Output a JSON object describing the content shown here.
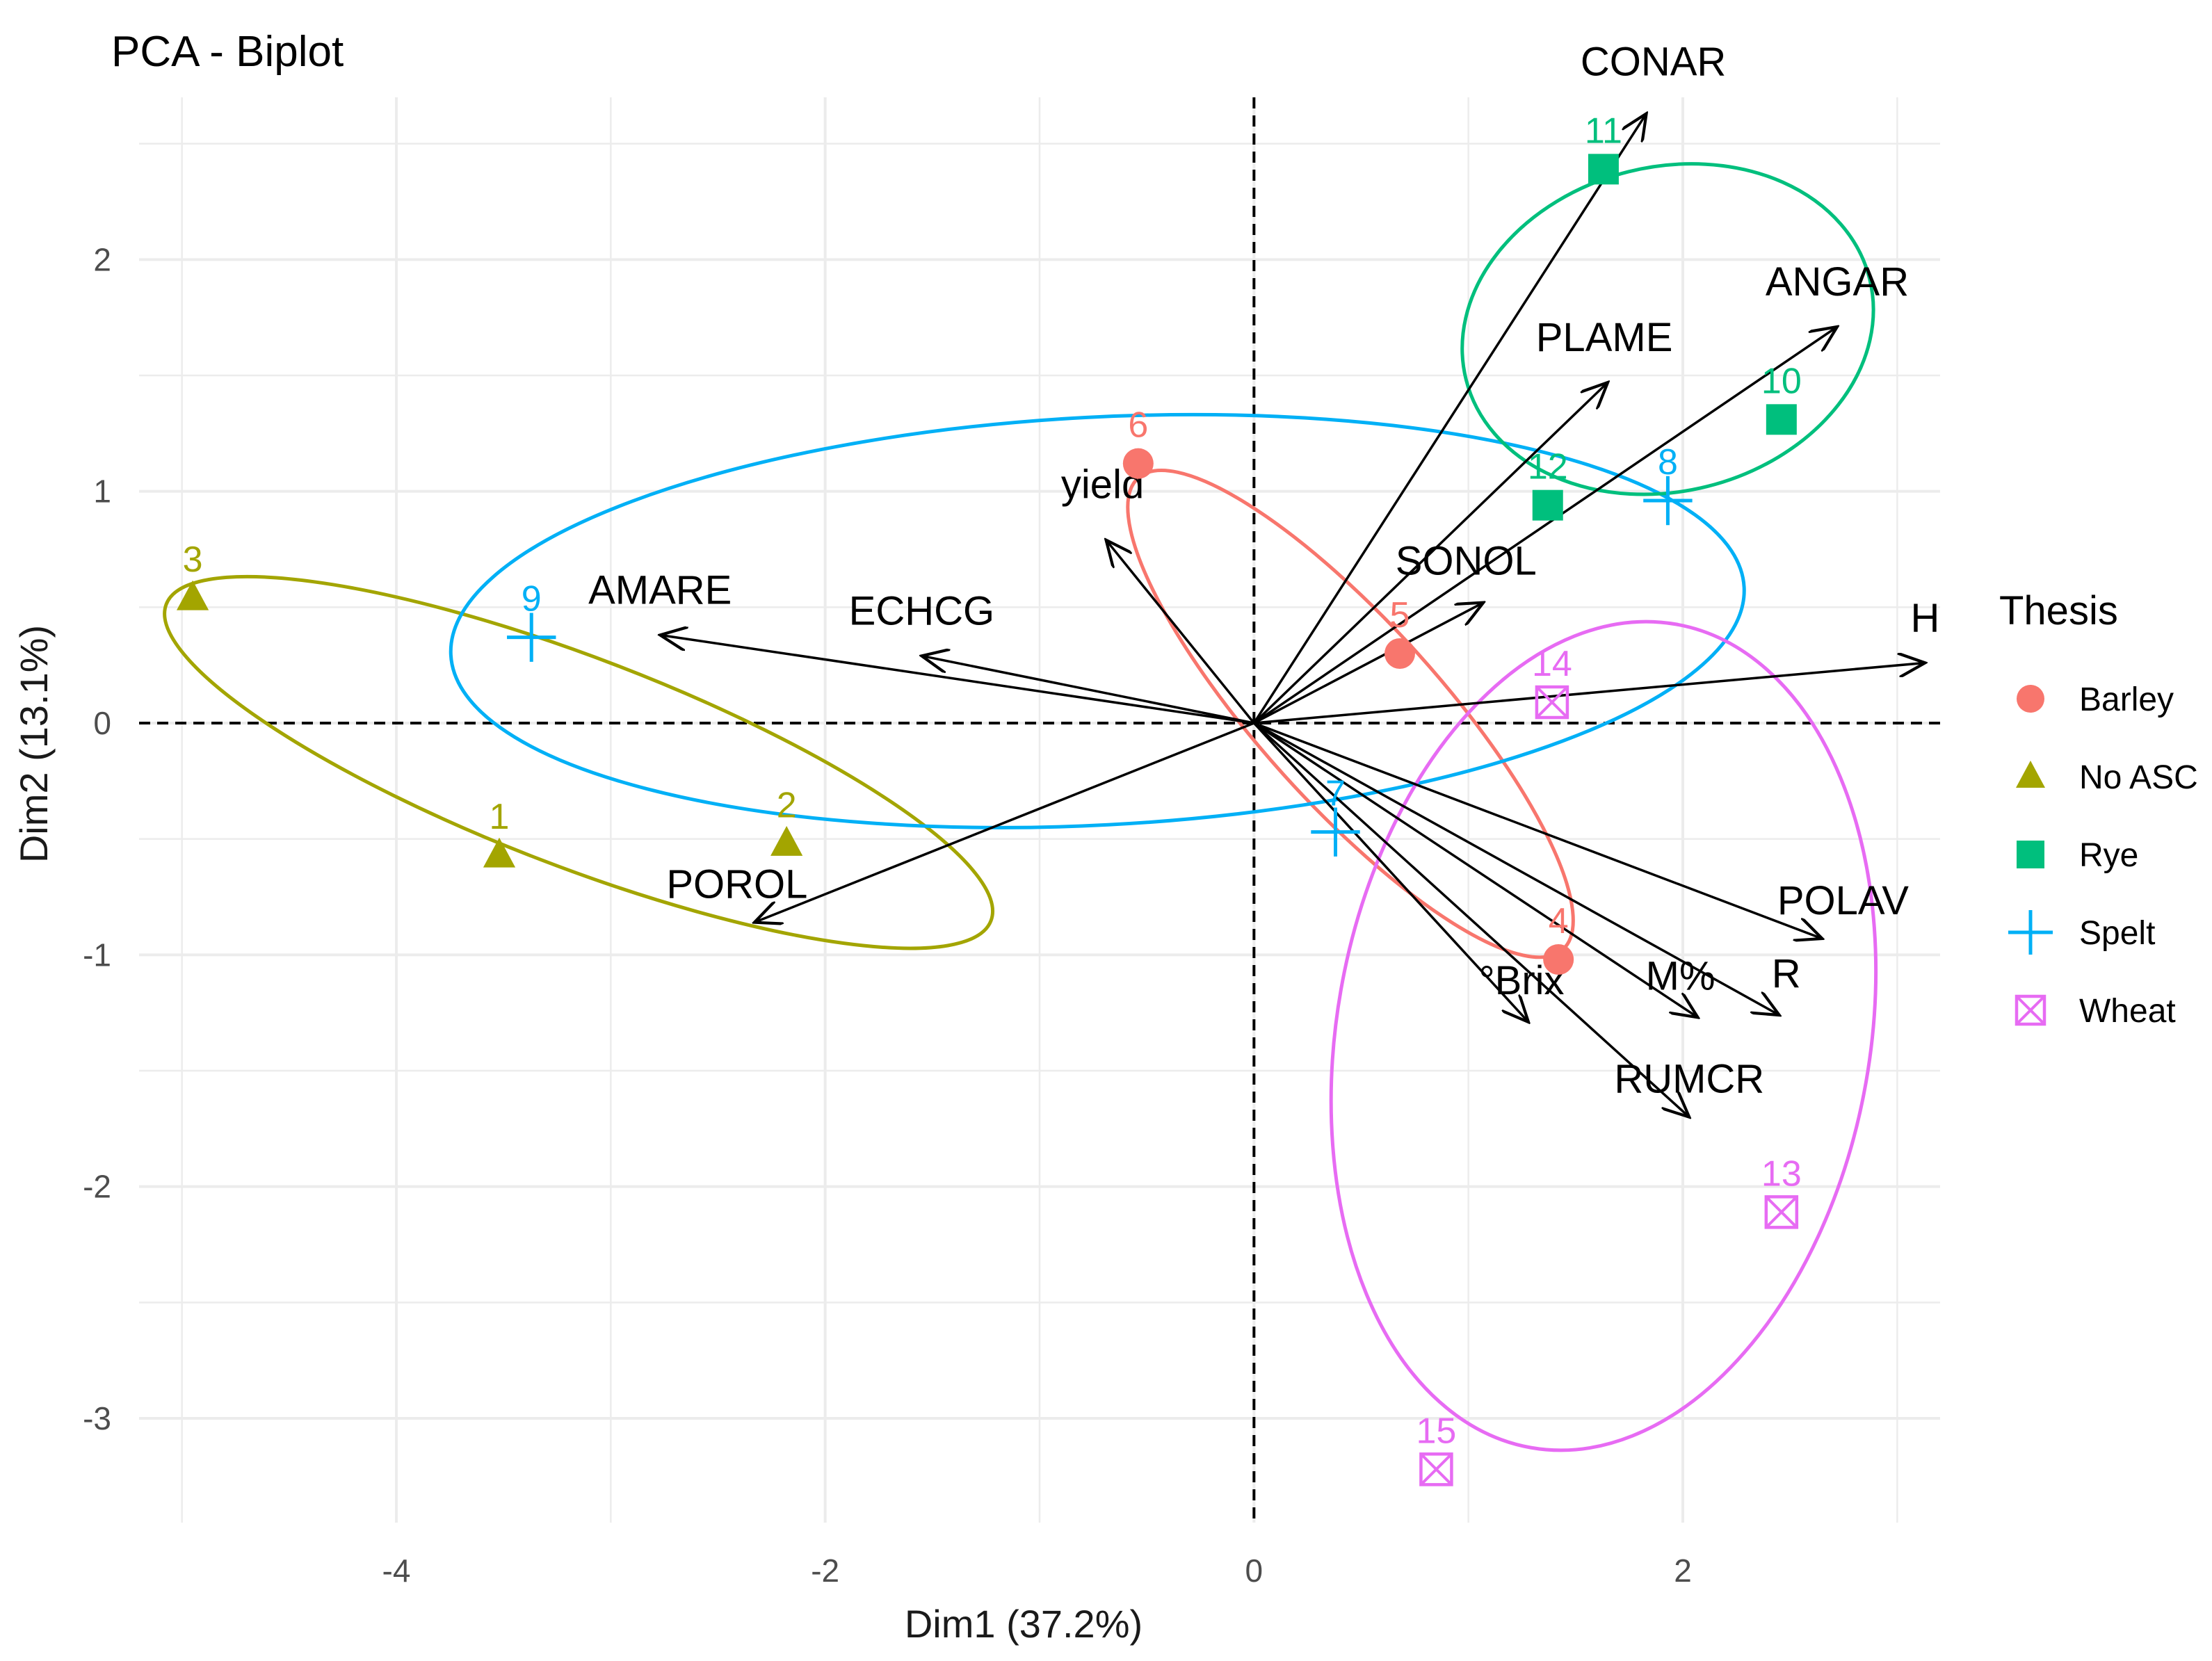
{
  "chart_data": {
    "type": "scatter",
    "subtype": "pca-biplot",
    "title": "PCA - Biplot",
    "xlabel": "Dim1 (37.2%)",
    "ylabel": "Dim2 (13.1%)",
    "xlim": [
      -5.2,
      3.2
    ],
    "ylim": [
      -3.45,
      2.7
    ],
    "xticks": [
      -4,
      -2,
      0,
      2
    ],
    "yticks": [
      -3,
      -2,
      -1,
      0,
      1,
      2
    ],
    "grid": true,
    "legend": {
      "title": "Thesis",
      "placement": "right",
      "entries": [
        {
          "name": "Barley",
          "color": "#F8766D",
          "shape": "circle"
        },
        {
          "name": "No ASC",
          "color": "#A3A500",
          "shape": "triangle"
        },
        {
          "name": "Rye",
          "color": "#00BF7D",
          "shape": "square"
        },
        {
          "name": "Spelt",
          "color": "#00B0F6",
          "shape": "plus"
        },
        {
          "name": "Wheat",
          "color": "#E76BF3",
          "shape": "square-x"
        }
      ]
    },
    "points": [
      {
        "label": "1",
        "group": "No ASC",
        "x": -3.52,
        "y": -0.57
      },
      {
        "label": "2",
        "group": "No ASC",
        "x": -2.18,
        "y": -0.52
      },
      {
        "label": "3",
        "group": "No ASC",
        "x": -4.95,
        "y": 0.54
      },
      {
        "label": "4",
        "group": "Barley",
        "x": 1.42,
        "y": -1.02
      },
      {
        "label": "5",
        "group": "Barley",
        "x": 0.68,
        "y": 0.3
      },
      {
        "label": "6",
        "group": "Barley",
        "x": -0.54,
        "y": 1.12
      },
      {
        "label": "7",
        "group": "Spelt",
        "x": 0.38,
        "y": -0.47
      },
      {
        "label": "8",
        "group": "Spelt",
        "x": 1.93,
        "y": 0.96
      },
      {
        "label": "9",
        "group": "Spelt",
        "x": -3.37,
        "y": 0.37
      },
      {
        "label": "10",
        "group": "Rye",
        "x": 2.46,
        "y": 1.31
      },
      {
        "label": "11",
        "group": "Rye",
        "x": 1.63,
        "y": 2.39
      },
      {
        "label": "12",
        "group": "Rye",
        "x": 1.37,
        "y": 0.94
      },
      {
        "label": "13",
        "group": "Wheat",
        "x": 2.46,
        "y": -2.11
      },
      {
        "label": "14",
        "group": "Wheat",
        "x": 1.39,
        "y": 0.09
      },
      {
        "label": "15",
        "group": "Wheat",
        "x": 0.85,
        "y": -3.22
      }
    ],
    "variables": [
      {
        "name": "CONAR",
        "x": 1.83,
        "y": 2.63
      },
      {
        "name": "ANGAR",
        "x": 2.72,
        "y": 1.71
      },
      {
        "name": "PLAME",
        "x": 1.65,
        "y": 1.47
      },
      {
        "name": "SONOL",
        "x": 1.07,
        "y": 0.52
      },
      {
        "name": "H",
        "x": 3.13,
        "y": 0.26
      },
      {
        "name": "yield",
        "x": -0.69,
        "y": 0.79
      },
      {
        "name": "AMARE",
        "x": -2.77,
        "y": 0.38
      },
      {
        "name": "ECHCG",
        "x": -1.55,
        "y": 0.29
      },
      {
        "name": "POROL",
        "x": -2.33,
        "y": -0.86
      },
      {
        "name": "POLAV",
        "x": 2.65,
        "y": -0.93
      },
      {
        "name": "R",
        "x": 2.45,
        "y": -1.26
      },
      {
        "name": "M%",
        "x": 2.07,
        "y": -1.27
      },
      {
        "name": "°Brix",
        "x": 1.28,
        "y": -1.29
      },
      {
        "name": "RUMCR",
        "x": 2.03,
        "y": -1.7
      }
    ],
    "ellipses": [
      {
        "group": "No ASC",
        "cx": -3.15,
        "cy": -0.17,
        "rx": 2.06,
        "ry": 0.45,
        "angle_deg": -21
      },
      {
        "group": "Barley",
        "cx": 0.45,
        "cy": 0.04,
        "rx": 1.48,
        "ry": 0.39,
        "angle_deg": -48
      },
      {
        "group": "Spelt",
        "cx": -0.73,
        "cy": 0.44,
        "rx": 3.02,
        "ry": 0.88,
        "angle_deg": 3
      },
      {
        "group": "Rye",
        "cx": 1.93,
        "cy": 1.7,
        "rx": 0.97,
        "ry": 0.7,
        "angle_deg": 14
      },
      {
        "group": "Wheat",
        "cx": 1.63,
        "cy": -1.35,
        "rx": 1.95,
        "ry": 1.15,
        "angle_deg": 80
      }
    ]
  }
}
